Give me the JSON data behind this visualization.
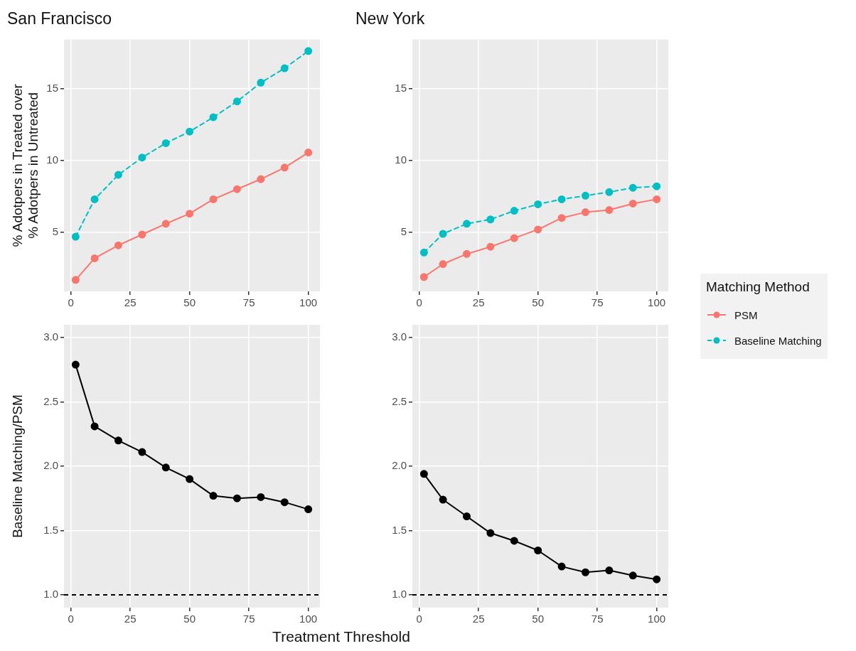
{
  "chart_data": [
    {
      "type": "line",
      "title": "San Francisco",
      "legend_title": "Matching Method",
      "ylabel": "% Adotpers in Treated over\n% Adotpers in Untreated",
      "x": [
        2,
        10,
        20,
        30,
        40,
        50,
        60,
        70,
        80,
        90,
        100
      ],
      "xlim": [
        -2.9,
        104.9
      ],
      "xticks": [
        0,
        25,
        50,
        75,
        100
      ],
      "ylim": [
        0.9,
        18.4
      ],
      "yticks": [
        5,
        10,
        15
      ],
      "grid": true,
      "marker": "circle",
      "legend": "right",
      "series": [
        {
          "name": "PSM",
          "color": "#f8766d",
          "line_style": "solid",
          "values": [
            1.7,
            3.2,
            4.1,
            4.85,
            5.6,
            6.3,
            7.3,
            8.0,
            8.7,
            9.5,
            10.55
          ]
        },
        {
          "name": "Baseline Matching",
          "color": "#00bfc4",
          "line_style": "dashed",
          "values": [
            4.7,
            7.3,
            9.0,
            10.2,
            11.2,
            12.0,
            13.0,
            14.1,
            15.4,
            16.4,
            17.6
          ]
        }
      ]
    },
    {
      "type": "line",
      "title": "New York",
      "x": [
        2,
        10,
        20,
        30,
        40,
        50,
        60,
        70,
        80,
        90,
        100
      ],
      "xlim": [
        -2.9,
        104.9
      ],
      "xticks": [
        0,
        25,
        50,
        75,
        100
      ],
      "ylim": [
        0.9,
        18.4
      ],
      "yticks": [
        5,
        10,
        15
      ],
      "grid": true,
      "marker": "circle",
      "legend": false,
      "series": [
        {
          "color": "#f8766d",
          "line_style": "solid",
          "values": [
            1.9,
            2.8,
            3.5,
            4.0,
            4.6,
            5.2,
            6.0,
            6.4,
            6.55,
            7.0,
            7.3
          ]
        },
        {
          "color": "#00bfc4",
          "line_style": "dashed",
          "values": [
            3.6,
            4.9,
            5.6,
            5.9,
            6.5,
            6.95,
            7.3,
            7.55,
            7.8,
            8.1,
            8.2
          ]
        }
      ]
    },
    {
      "type": "line",
      "ylabel": "Baseline Matching/PSM",
      "xlabel": "Treatment Threshold",
      "x": [
        2,
        10,
        20,
        30,
        40,
        50,
        60,
        70,
        80,
        90,
        100
      ],
      "xlim": [
        -2.9,
        104.9
      ],
      "xticks": [
        0,
        25,
        50,
        75,
        100
      ],
      "ylim": [
        0.9,
        3.1
      ],
      "yticks": [
        {
          "value": 1,
          "label": "1.0"
        },
        1.5,
        {
          "value": 2,
          "label": "2.0"
        },
        2.5,
        {
          "value": 3,
          "label": "3.0"
        }
      ],
      "grid": true,
      "marker": "circle",
      "legend": false,
      "ref_lines": [
        {
          "axis": "y",
          "value": 1,
          "color": "#000000",
          "line_style": "dashed"
        }
      ],
      "series": [
        {
          "color": "#000000",
          "line_style": "solid",
          "values": [
            2.79,
            2.31,
            2.2,
            2.11,
            1.99,
            1.9,
            1.77,
            1.75,
            1.76,
            1.72,
            1.665
          ]
        }
      ]
    },
    {
      "type": "line",
      "x": [
        2,
        10,
        20,
        30,
        40,
        50,
        60,
        70,
        80,
        90,
        100
      ],
      "xlim": [
        -2.9,
        104.9
      ],
      "xticks": [
        0,
        25,
        50,
        75,
        100
      ],
      "ylim": [
        0.9,
        3.1
      ],
      "yticks": [
        {
          "value": 1,
          "label": "1.0"
        },
        1.5,
        {
          "value": 2,
          "label": "2.0"
        },
        2.5,
        {
          "value": 3,
          "label": "3.0"
        }
      ],
      "grid": true,
      "marker": "circle",
      "legend": false,
      "ref_lines": [
        {
          "axis": "y",
          "value": 1,
          "color": "#000000",
          "line_style": "dashed"
        }
      ],
      "series": [
        {
          "color": "#000000",
          "line_style": "solid",
          "values": [
            1.94,
            1.74,
            1.61,
            1.48,
            1.42,
            1.345,
            1.22,
            1.175,
            1.19,
            1.15,
            1.12
          ]
        }
      ]
    }
  ]
}
